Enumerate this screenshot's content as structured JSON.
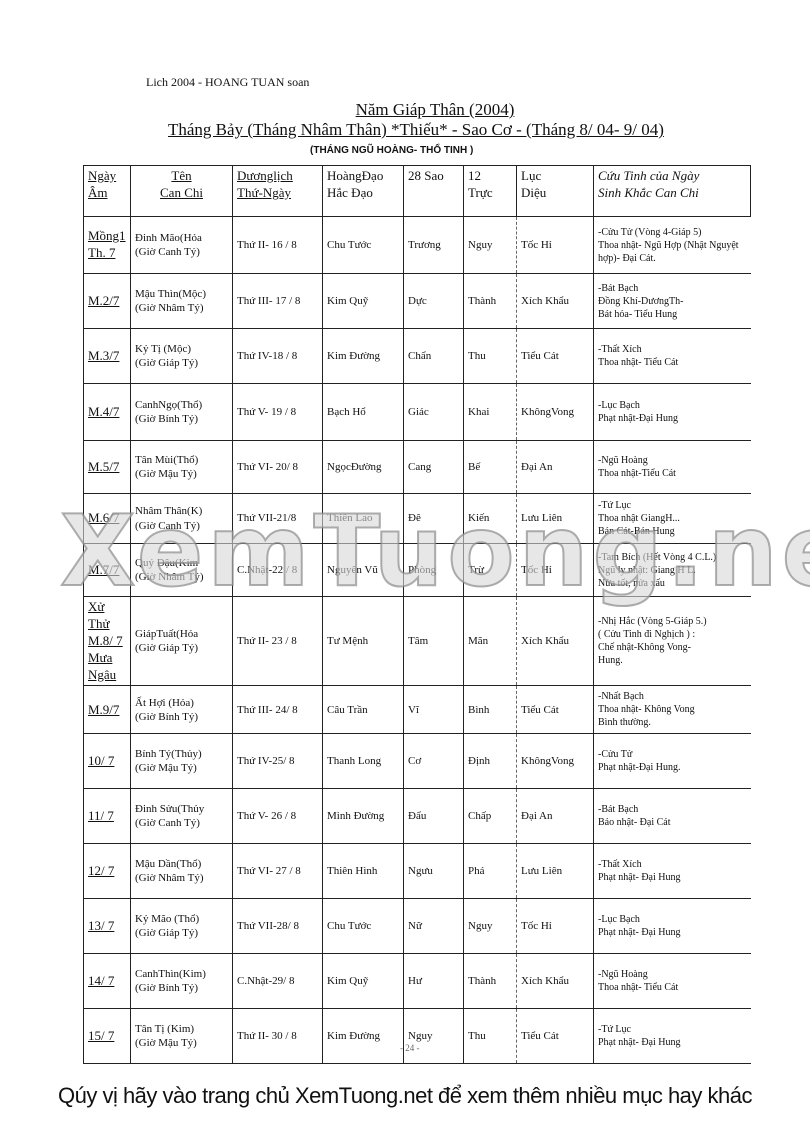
{
  "header": {
    "author": "Lich 2004 - HOANG TUAN soan",
    "title": "Năm Giáp Thân (2004)",
    "subtitle": "Tháng Bảy (Tháng Nhâm Thân) *Thiếu* - Sao Cơ - (Tháng 8/ 04- 9/ 04)",
    "note": "(THÁNG NGŨ HOÀNG- THỔ TINH )"
  },
  "table": {
    "columns": [
      "Ngày\nÂm",
      "Tên\nCan Chi",
      "Dươnglịch\nThứ-Ngày",
      "HoàngĐạo\nHắc Đạo",
      "28 Sao",
      "12\nTrực",
      "Lục\nDiệu",
      "Cứu Tinh của Ngày\nSinh Khắc Can Chi"
    ],
    "rows": [
      [
        "Mồng1\nTh. 7",
        "Đinh Mão(Hỏa\n(Giờ Canh Tý)",
        "Thứ II- 16 / 8",
        "Chu Tước",
        "Trương",
        "Nguy",
        "Tốc Hỉ",
        "-Cửu Tử (Vòng 4-Giáp 5)\nThoa nhật- Ngũ Hợp (Nhật Nguyệt hợp)- Đại Cát."
      ],
      [
        "M.2/7",
        "Mậu Thìn(Mộc)\n(Giờ Nhâm Tý)",
        "Thứ III- 17 / 8",
        "Kim Quỹ",
        "Dực",
        "Thành",
        "Xích Khẩu",
        "-Bát Bạch\nĐồng Khí-DươngTh-\nBát hỏa- Tiểu Hung"
      ],
      [
        "M.3/7",
        "Kỷ Tị (Mộc)\n(Giờ Giáp Tý)",
        "Thứ IV-18 / 8",
        "Kim Đường",
        "Chẩn",
        "Thu",
        "Tiểu Cát",
        "-Thất Xích\nThoa nhật- Tiểu Cát"
      ],
      [
        "M.4/7",
        "CanhNgọ(Thổ)\n(Giờ Bính Tý)",
        "Thứ V- 19 / 8",
        "Bạch Hổ",
        "Giác",
        "Khai",
        "KhôngVong",
        "-Lục Bạch\nPhạt nhật-Đại Hung"
      ],
      [
        "M.5/7",
        "Tân Mùi(Thổ)\n(Giờ Mậu Tý)",
        "Thứ VI- 20/ 8",
        "NgọcĐường",
        "Cang",
        "Bế",
        "Đại An",
        "-Ngũ Hoàng\nThoa nhật-Tiểu Cát"
      ],
      [
        "M.6/7",
        "Nhâm Thân(K)\n(Giờ Canh Tý)",
        "Thứ VII-21/8",
        "Thiên Lao",
        "Đê",
        "Kiến",
        "Lưu Liên",
        "-Tứ Lục\nThoa nhật GiangH...\nBán Cát-Bán Hung"
      ],
      [
        "M.7/7",
        "Quý Dậu(Kim\n(Giờ Nhâm Tý)",
        "C.Nhật-22 / 8",
        "Nguyên Vũ",
        "Phòng",
        "Trừ",
        "Tốc Hỉ",
        "-Tam Bích (Hết Vòng 4 C.L.)\nNgũ ly nhật: Giang H L.\nNửa tốt, nửa xấu"
      ],
      [
        "Xử Thử\nM.8/ 7\nMưa Ngâu",
        "GiápTuất(Hỏa\n(Giờ Giáp Tý)",
        "Thứ II- 23 / 8",
        "Tư Mệnh",
        "Tâm",
        "Mãn",
        "Xích Khẩu",
        "-Nhị Hắc (Vòng 5-Giáp 5.)\n( Cửu Tinh đi Nghịch ) :\nChế nhật-Không Vong-\nHung."
      ],
      [
        "M.9/7",
        "Ất Hợi (Hỏa)\n(Giờ Bính Tý)",
        "Thứ III- 24/ 8",
        "Câu Trần",
        "Vĩ",
        "Bình",
        "Tiểu Cát",
        "-Nhất Bạch\nThoa nhật- Không Vong\nBình thường."
      ],
      [
        "10/ 7",
        "Bính Tý(Thủy)\n(Giờ Mậu Tý)",
        "Thứ IV-25/ 8",
        "Thanh Long",
        "Cơ",
        "Định",
        "KhôngVong",
        "-Cửu Tử\nPhạt nhật-Đại Hung."
      ],
      [
        "11/ 7",
        "Đinh Sửu(Thủy\n(Giờ Canh Tý)",
        "Thứ V- 26 / 8",
        "Minh Đường",
        "Đẩu",
        "Chấp",
        "Đại An",
        "-Bát Bạch\nBảo nhật- Đại Cát"
      ],
      [
        "12/ 7",
        "Mậu Dần(Thổ)\n(Giờ Nhâm Tý)",
        "Thứ VI- 27 / 8",
        "Thiên Hình",
        "Ngưu",
        "Phá",
        "Lưu Liên",
        "-Thất Xích\nPhạt nhật- Đại Hung"
      ],
      [
        "13/ 7",
        "Kỷ Mão (Thổ)\n(Giờ Giáp Tý)",
        "Thứ VII-28/ 8",
        "Chu Tước",
        "Nữ",
        "Nguy",
        "Tốc Hỉ",
        "-Lục Bạch\nPhạt nhật- Đại Hung"
      ],
      [
        "14/ 7",
        "CanhThìn(Kim)\n(Giờ Bính Tý)",
        "C.Nhật-29/ 8",
        "Kim Quỹ",
        "Hư",
        "Thành",
        "Xích Khẩu",
        "-Ngũ Hoàng\nThoa nhật- Tiểu Cát"
      ],
      [
        "15/ 7",
        "Tân Tị (Kim)\n(Giờ Mậu Tý)",
        "Thứ II- 30 / 8",
        "Kim Đường",
        "Nguy",
        "Thu",
        "Tiểu Cát",
        "-Tứ Lục\nPhạt nhật- Đại Hung"
      ]
    ]
  },
  "page_number": "- 24 -",
  "watermark": "XemTuong.net",
  "footer": "Qúy vị hãy vào trang chủ XemTuong.net để xem thêm nhiều mục hay khác"
}
